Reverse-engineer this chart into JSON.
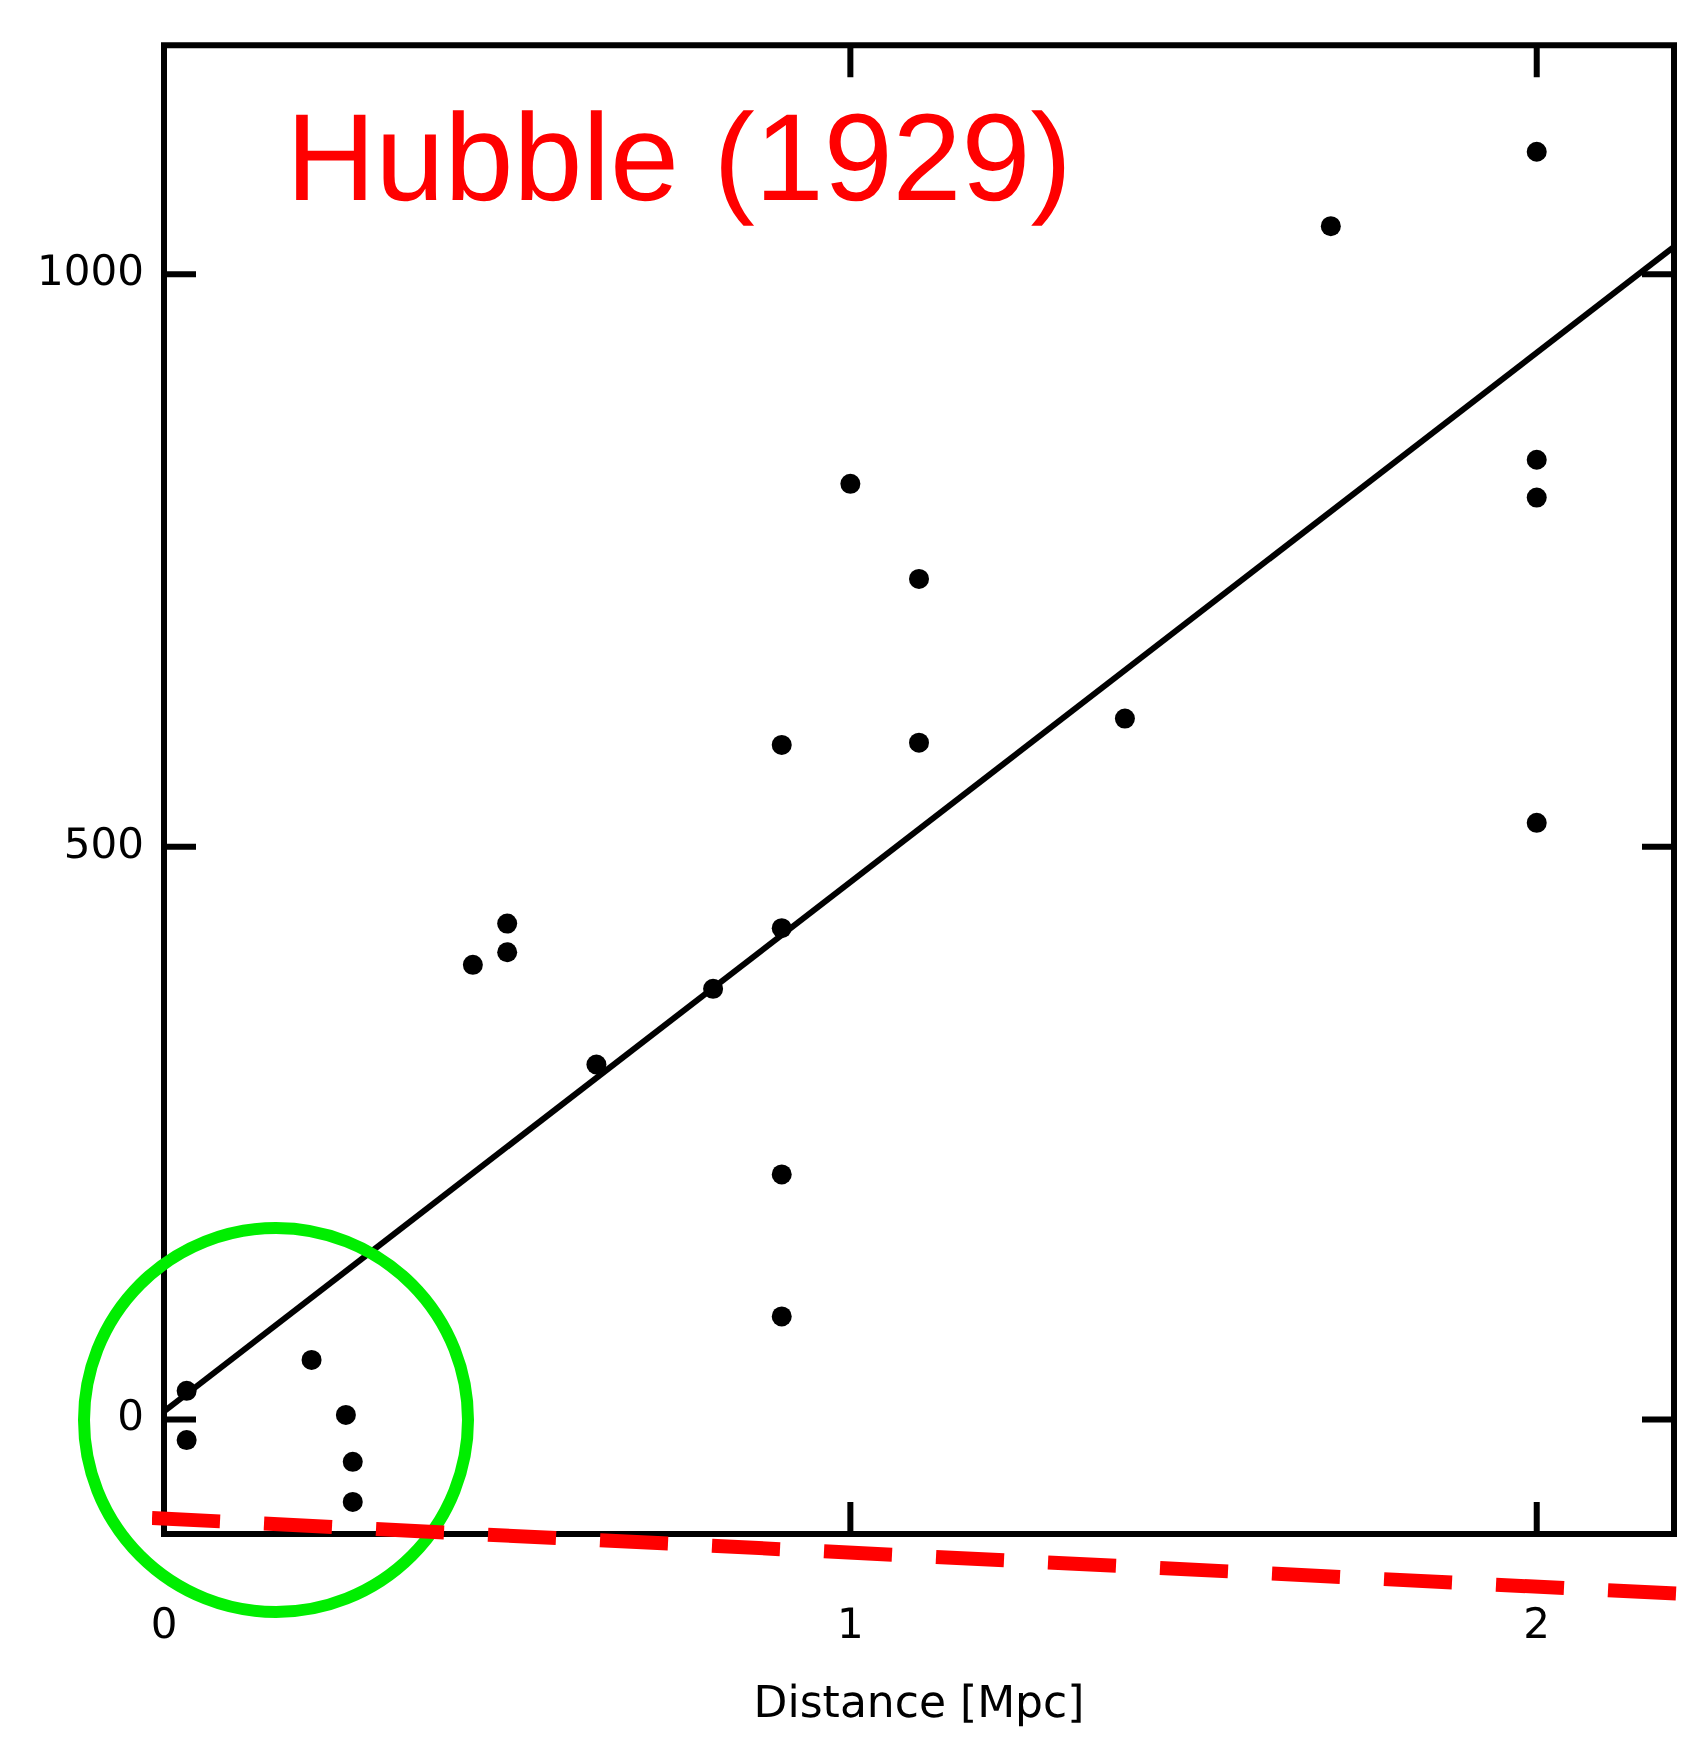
{
  "chart_data": {
    "type": "scatter",
    "xlabel": "Distance [Mpc]",
    "annotations": [
      "Hubble (1929)"
    ],
    "xlim": [
      0,
      2.2
    ],
    "ylim": [
      -100,
      1200
    ],
    "xticks": [
      0,
      1,
      2
    ],
    "yticks": [
      0,
      500,
      1000
    ],
    "grid": false,
    "legend": false,
    "marker": "circle",
    "series": [
      {
        "color": "#000000",
        "x": [
          0.033,
          0.033,
          0.215,
          0.265,
          0.275,
          0.275,
          0.45,
          0.5,
          0.5,
          0.63,
          0.8,
          0.9,
          0.9,
          0.9,
          0.9,
          1.0,
          1.1,
          1.1,
          1.4,
          1.7,
          2.0,
          2.0,
          2.0,
          2.0
        ],
        "values": [
          25,
          -18,
          52,
          4,
          -37,
          -72,
          397,
          433,
          408,
          310,
          376,
          429,
          589,
          214,
          90,
          817,
          591,
          734,
          612,
          1042,
          1107,
          838,
          805,
          521
        ]
      },
      {
        "type": "line",
        "color": "#000000",
        "marker": "none",
        "x": [
          0,
          2.2
        ],
        "values": [
          7,
          1024
        ]
      }
    ]
  }
}
